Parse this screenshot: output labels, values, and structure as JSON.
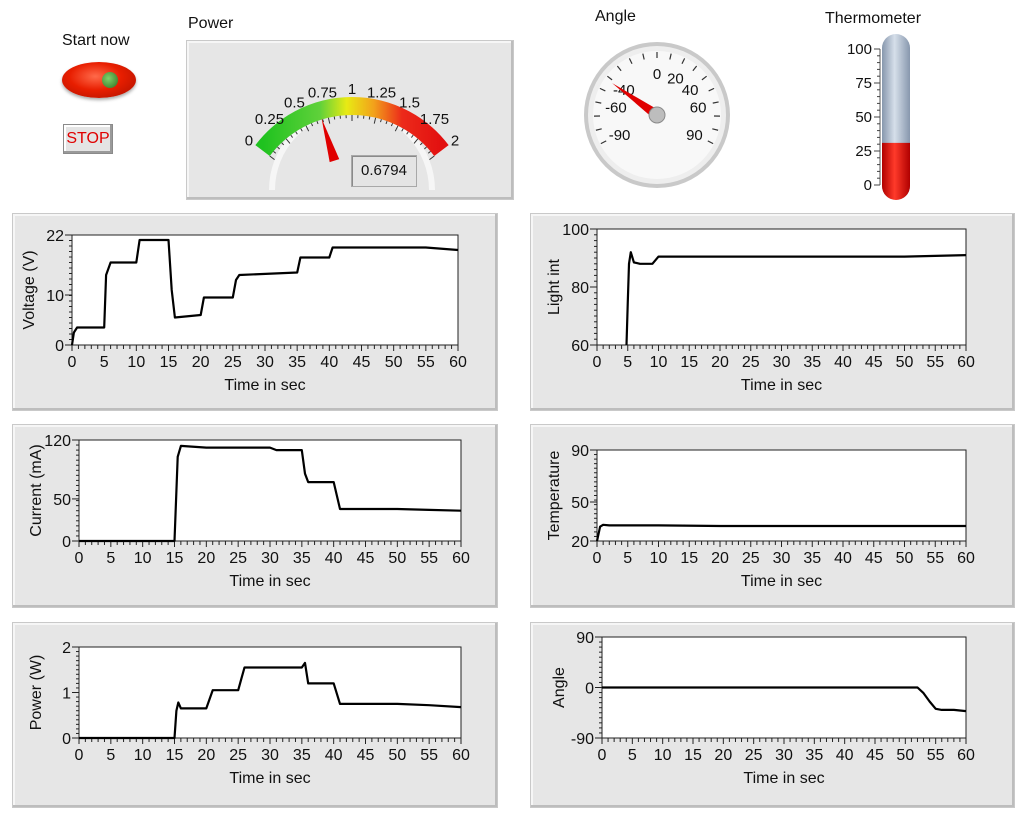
{
  "controls": {
    "start_label": "Start now",
    "stop_label": "STOP"
  },
  "power_gauge": {
    "title": "Power",
    "min": 0,
    "max": 2,
    "ticks": [
      "0",
      "0.25",
      "0.5",
      "0.75",
      "1",
      "1.25",
      "1.5",
      "1.75",
      "2"
    ],
    "value": 0.6794,
    "display": "0.6794"
  },
  "angle_gauge": {
    "title": "Angle",
    "ticks": [
      "-90",
      "-60",
      "-40",
      "0",
      "20",
      "40",
      "60",
      "90"
    ],
    "value": -42
  },
  "thermometer": {
    "title": "Thermometer",
    "ticks": [
      "100",
      "75",
      "50",
      "25",
      "0"
    ],
    "min": 0,
    "max": 100,
    "value": 31
  },
  "colors": {
    "led_red": "#e81e00",
    "needle": "#e00000",
    "thermo_fill": "#e00000",
    "thermo_empty": "#a9b7c9",
    "panel_bg": "#e6e6e6"
  },
  "chart_data": [
    {
      "type": "line",
      "ylabel": "Voltage (V)",
      "xlabel": "Time in sec",
      "xlim": [
        0,
        60
      ],
      "ylim": [
        0,
        22
      ],
      "yticks": [
        "0",
        "10",
        "22"
      ],
      "xticks": [
        "0",
        "5",
        "10",
        "15",
        "20",
        "25",
        "30",
        "35",
        "40",
        "45",
        "50",
        "55",
        "60"
      ],
      "x": [
        0,
        0.3,
        0.8,
        5,
        5.3,
        6,
        10,
        10.5,
        15,
        15.5,
        16,
        20,
        20.5,
        25,
        25.5,
        26,
        35,
        35.5,
        36,
        40,
        40.5,
        45,
        50,
        55,
        60
      ],
      "y": [
        0,
        2.5,
        3.5,
        3.5,
        14,
        16.5,
        16.5,
        21,
        21,
        11,
        5.5,
        6,
        9.5,
        9.5,
        13,
        14,
        14.5,
        17.5,
        17.5,
        17.5,
        19.5,
        19.5,
        19.5,
        19.5,
        19
      ]
    },
    {
      "type": "line",
      "ylabel": "Light int",
      "xlabel": "Time in sec",
      "xlim": [
        0,
        60
      ],
      "ylim": [
        60,
        100
      ],
      "yticks": [
        "60",
        "80",
        "100"
      ],
      "xticks": [
        "0",
        "5",
        "10",
        "15",
        "20",
        "25",
        "30",
        "35",
        "40",
        "45",
        "50",
        "55",
        "60"
      ],
      "x": [
        4.8,
        5.0,
        5.2,
        5.5,
        6,
        7,
        9,
        10,
        20,
        30,
        40,
        50,
        60
      ],
      "y": [
        60,
        75,
        88,
        92,
        88.5,
        88,
        88,
        90.5,
        90.5,
        90.5,
        90.5,
        90.5,
        91
      ]
    },
    {
      "type": "line",
      "ylabel": "Current (mA)",
      "xlabel": "Time in sec",
      "xlim": [
        0,
        60
      ],
      "ylim": [
        0,
        120
      ],
      "yticks": [
        "0",
        "50",
        "120"
      ],
      "xticks": [
        "0",
        "5",
        "10",
        "15",
        "20",
        "25",
        "30",
        "35",
        "40",
        "45",
        "50",
        "55",
        "60"
      ],
      "x": [
        0,
        15,
        15.5,
        16,
        20,
        30,
        31,
        35,
        35.5,
        36,
        40,
        41,
        50,
        55,
        60
      ],
      "y": [
        0,
        0,
        100,
        113,
        111,
        111,
        108,
        108,
        80,
        70,
        70,
        38,
        38,
        37,
        36
      ]
    },
    {
      "type": "line",
      "ylabel": "Temperature",
      "xlabel": "Time in sec",
      "xlim": [
        0,
        60
      ],
      "ylim": [
        20,
        90
      ],
      "yticks": [
        "20",
        "50",
        "90"
      ],
      "xticks": [
        "0",
        "5",
        "10",
        "15",
        "20",
        "25",
        "30",
        "35",
        "40",
        "45",
        "50",
        "55",
        "60"
      ],
      "x": [
        0,
        0.5,
        1,
        2,
        10,
        20,
        30,
        40,
        50,
        60
      ],
      "y": [
        20,
        31,
        32.5,
        32,
        32,
        31.5,
        31.5,
        31.5,
        31.5,
        31.5
      ]
    },
    {
      "type": "line",
      "ylabel": "Power (W)",
      "xlabel": "Time in sec",
      "xlim": [
        0,
        60
      ],
      "ylim": [
        0,
        2
      ],
      "yticks": [
        "0",
        "1",
        "2"
      ],
      "xticks": [
        "0",
        "5",
        "10",
        "15",
        "20",
        "25",
        "30",
        "35",
        "40",
        "45",
        "50",
        "55",
        "60"
      ],
      "x": [
        0,
        15,
        15.3,
        15.6,
        16,
        20,
        21,
        25,
        25.5,
        26,
        30,
        35,
        35.5,
        36,
        40,
        41,
        50,
        55,
        60
      ],
      "y": [
        0,
        0,
        0.6,
        0.78,
        0.65,
        0.65,
        1.05,
        1.05,
        1.3,
        1.55,
        1.55,
        1.55,
        1.65,
        1.2,
        1.2,
        0.75,
        0.75,
        0.72,
        0.68
      ]
    },
    {
      "type": "line",
      "ylabel": "Angle",
      "xlabel": "Time in sec",
      "xlim": [
        0,
        60
      ],
      "ylim": [
        -90,
        90
      ],
      "yticks": [
        "-90",
        "0",
        "90"
      ],
      "xticks": [
        "0",
        "5",
        "10",
        "15",
        "20",
        "25",
        "30",
        "35",
        "40",
        "45",
        "50",
        "55",
        "60"
      ],
      "x": [
        0,
        50,
        52,
        53,
        54,
        55,
        56,
        58,
        60
      ],
      "y": [
        0,
        0,
        0,
        -10,
        -25,
        -38,
        -40,
        -40,
        -42
      ]
    }
  ]
}
